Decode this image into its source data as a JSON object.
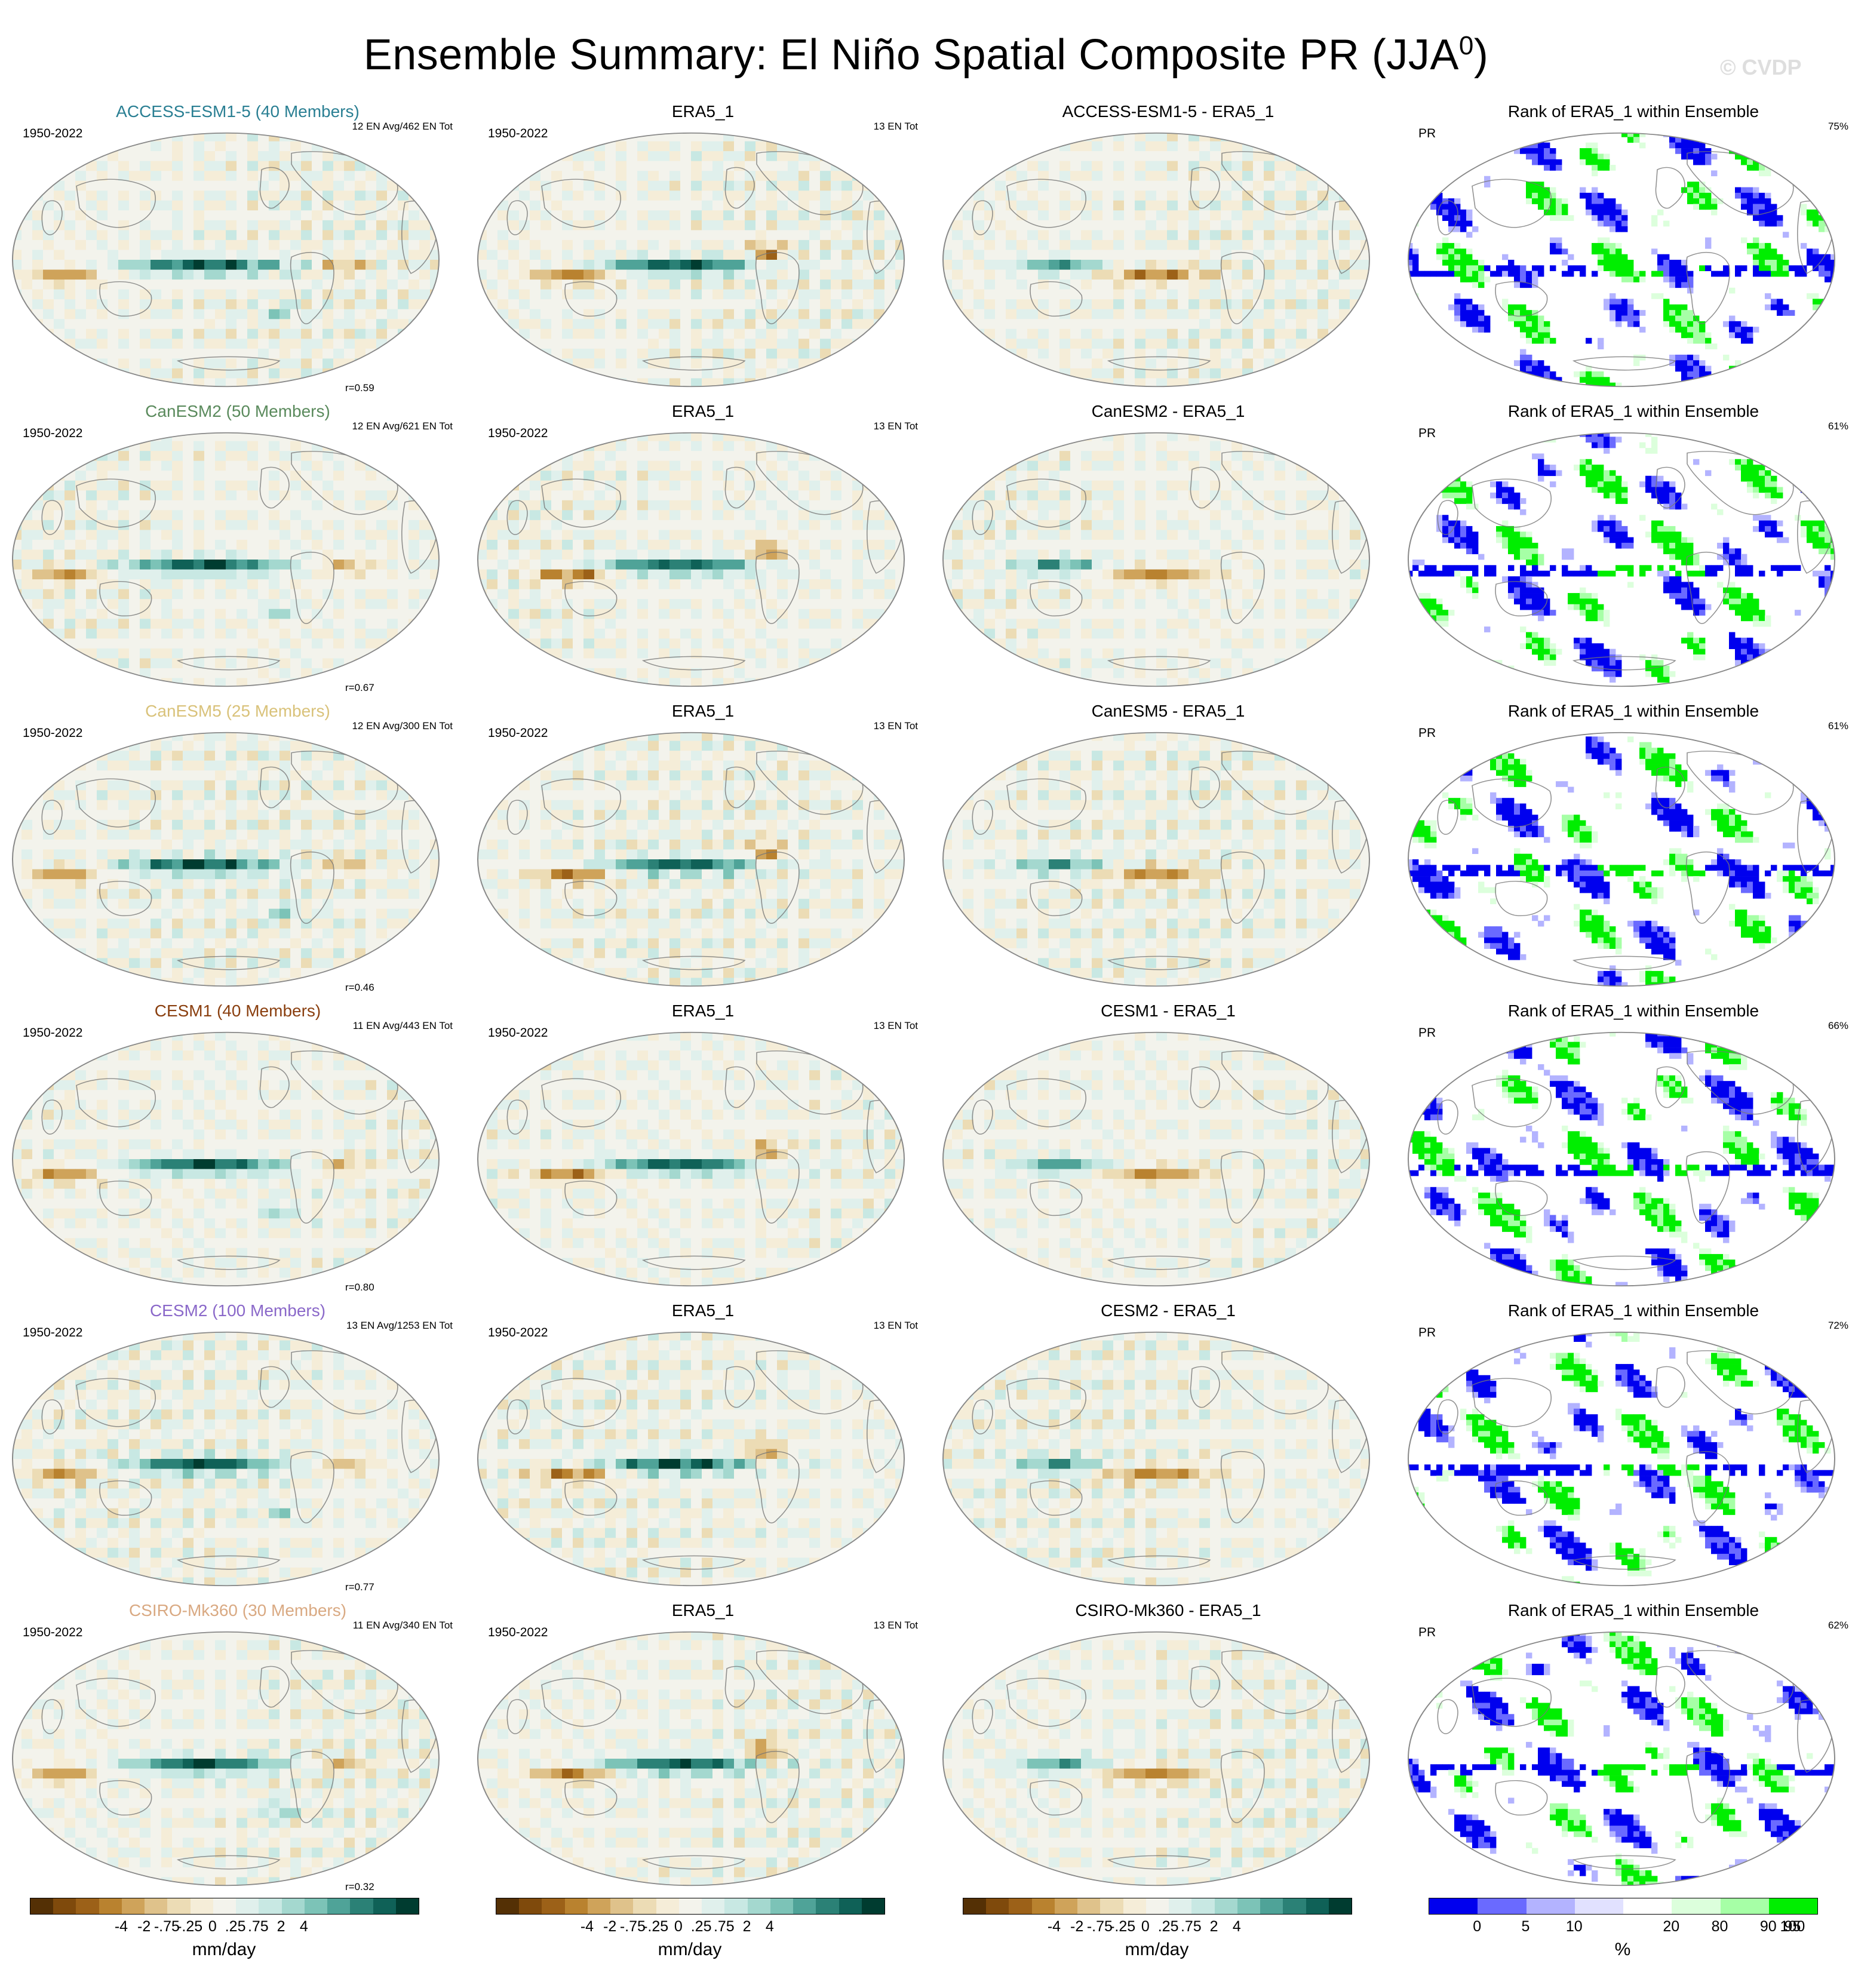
{
  "page": {
    "title": "Ensemble Summary: El Niño Spatial Composite PR (JJA",
    "title_sup": "0",
    "title_close": ")",
    "watermark": "© CVDP"
  },
  "rows": [
    {
      "model": "ACCESS-ESM1-5 (40 Members)",
      "model_color": "#2a7f93",
      "years": "1950-2022",
      "en_info": "12 EN Avg/462 EN Tot",
      "r": "r=0.59",
      "diff_title": "ACCESS-ESM1-5 - ERA5_1",
      "rank_pct": "75%"
    },
    {
      "model": "CanESM2 (50 Members)",
      "model_color": "#5a8a5c",
      "years": "1950-2022",
      "en_info": "12 EN Avg/621 EN Tot",
      "r": "r=0.67",
      "diff_title": "CanESM2 - ERA5_1",
      "rank_pct": "61%"
    },
    {
      "model": "CanESM5 (25 Members)",
      "model_color": "#d9c27a",
      "years": "1950-2022",
      "en_info": "12 EN Avg/300 EN Tot",
      "r": "r=0.46",
      "diff_title": "CanESM5 - ERA5_1",
      "rank_pct": "61%"
    },
    {
      "model": "CESM1 (40 Members)",
      "model_color": "#8a3f0f",
      "years": "1950-2022",
      "en_info": "11 EN Avg/443 EN Tot",
      "r": "r=0.80",
      "diff_title": "CESM1 - ERA5_1",
      "rank_pct": "66%"
    },
    {
      "model": "CESM2 (100 Members)",
      "model_color": "#8a68c9",
      "years": "1950-2022",
      "en_info": "13 EN Avg/1253 EN Tot",
      "r": "r=0.77",
      "diff_title": "CESM2 - ERA5_1",
      "rank_pct": "72%"
    },
    {
      "model": "CSIRO-Mk360 (30 Members)",
      "model_color": "#d9a982",
      "years": "1950-2022",
      "en_info": "11 EN Avg/340 EN Tot",
      "r": "r=0.32",
      "diff_title": "CSIRO-Mk360 - ERA5_1",
      "rank_pct": "62%"
    }
  ],
  "obs": {
    "title": "ERA5_1",
    "years": "1950-2022",
    "en_info": "13 EN Tot"
  },
  "rank": {
    "title": "Rank of ERA5_1 within Ensemble",
    "var": "PR"
  },
  "colorbar_pr": {
    "labels": [
      "-4",
      "-2",
      "-.75",
      "-.25",
      "0",
      ".25",
      ".75",
      "2",
      "4"
    ],
    "unit": "mm/day",
    "colors": [
      "#543005",
      "#7f4a0c",
      "#9c6118",
      "#b9822f",
      "#cfa35a",
      "#dfc28b",
      "#ecdcb5",
      "#f5edd8",
      "#f3f3ec",
      "#e0f0ec",
      "#c8e8e3",
      "#a4d8cf",
      "#7cc3b7",
      "#4fa398",
      "#2b8176",
      "#0f6157",
      "#003c30"
    ]
  },
  "colorbar_rank": {
    "labels": [
      "0",
      "5",
      "10",
      "20",
      "80",
      "90",
      "95",
      "100"
    ],
    "unit": "%",
    "colors": [
      "#0000ee",
      "#6a6aff",
      "#b3b3ff",
      "#e1e1ff",
      "#ffffff",
      "#dcffdc",
      "#a6ffa6",
      "#00ee00"
    ]
  }
}
